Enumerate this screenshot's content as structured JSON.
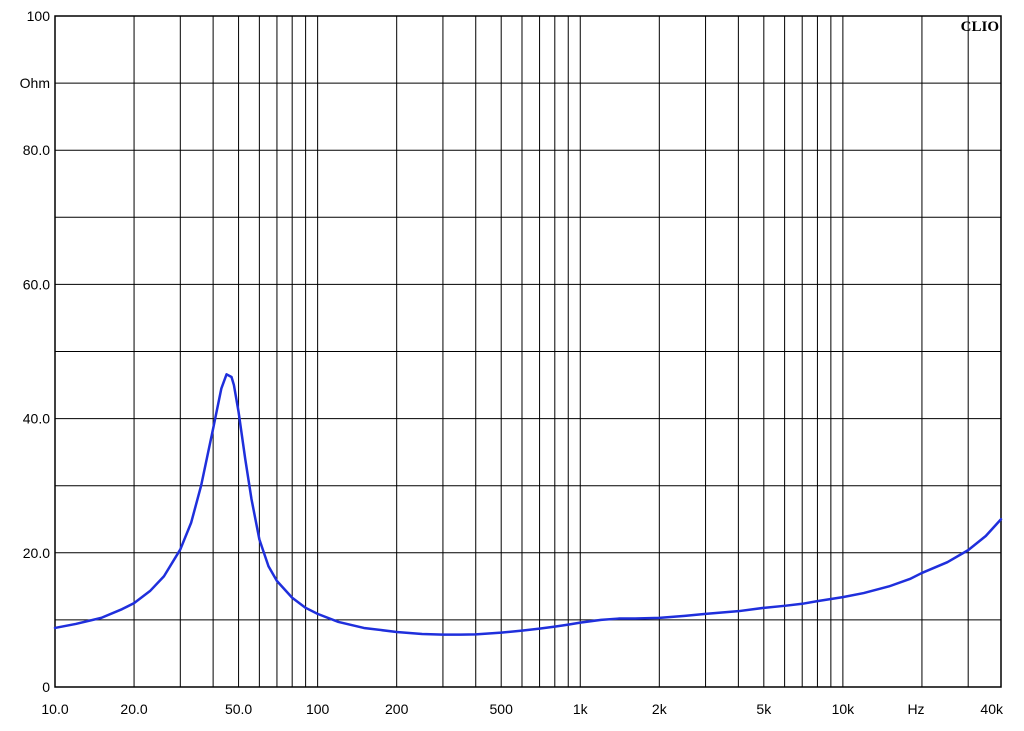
{
  "brand_label": "CLIO",
  "colors": {
    "curve": "#1f2fdc",
    "grid": "#000000",
    "background": "#ffffff"
  },
  "chart_data": {
    "type": "line",
    "title": "",
    "x_scale": "log",
    "xlim": [
      10,
      40000
    ],
    "ylim": [
      0,
      100
    ],
    "grid": true,
    "y_unit_label": "Ohm",
    "x_unit_label": "Hz",
    "x_ticks": [
      {
        "value": 10,
        "label": "10.0"
      },
      {
        "value": 20,
        "label": "20.0"
      },
      {
        "value": 50,
        "label": "50.0"
      },
      {
        "value": 100,
        "label": "100"
      },
      {
        "value": 200,
        "label": "200"
      },
      {
        "value": 500,
        "label": "500"
      },
      {
        "value": 1000,
        "label": "1k"
      },
      {
        "value": 2000,
        "label": "2k"
      },
      {
        "value": 5000,
        "label": "5k"
      },
      {
        "value": 10000,
        "label": "10k"
      },
      {
        "value": 40000,
        "label": "40k"
      }
    ],
    "y_ticks": [
      {
        "value": 0,
        "label": "0"
      },
      {
        "value": 20,
        "label": "20.0"
      },
      {
        "value": 40,
        "label": "40.0"
      },
      {
        "value": 60,
        "label": "60.0"
      },
      {
        "value": 80,
        "label": "80.0"
      },
      {
        "value": 100,
        "label": "100"
      }
    ],
    "series": [
      {
        "x": [
          10,
          12,
          15,
          18,
          20,
          23,
          26,
          30,
          33,
          36,
          40,
          43,
          45,
          47,
          48,
          50,
          53,
          56,
          60,
          65,
          70,
          80,
          90,
          100,
          120,
          150,
          200,
          250,
          300,
          350,
          400,
          500,
          600,
          700,
          800,
          900,
          1000,
          1200,
          1400,
          1600,
          2000,
          2500,
          3000,
          4000,
          5000,
          6000,
          7000,
          8000,
          10000,
          12000,
          15000,
          18000,
          20000,
          25000,
          30000,
          35000,
          40000
        ],
        "y": [
          8.8,
          9.4,
          10.3,
          11.6,
          12.5,
          14.3,
          16.5,
          20.5,
          24.5,
          30,
          38.5,
          44.5,
          46.6,
          46.2,
          45,
          41,
          34,
          28,
          22,
          18,
          15.8,
          13.3,
          11.8,
          10.9,
          9.7,
          8.8,
          8.2,
          7.9,
          7.8,
          7.8,
          7.85,
          8.1,
          8.4,
          8.7,
          9,
          9.3,
          9.6,
          10,
          10.2,
          10.2,
          10.3,
          10.6,
          10.9,
          11.3,
          11.8,
          12.1,
          12.4,
          12.8,
          13.4,
          14,
          15,
          16.1,
          17,
          18.6,
          20.4,
          22.5,
          25
        ]
      }
    ]
  }
}
